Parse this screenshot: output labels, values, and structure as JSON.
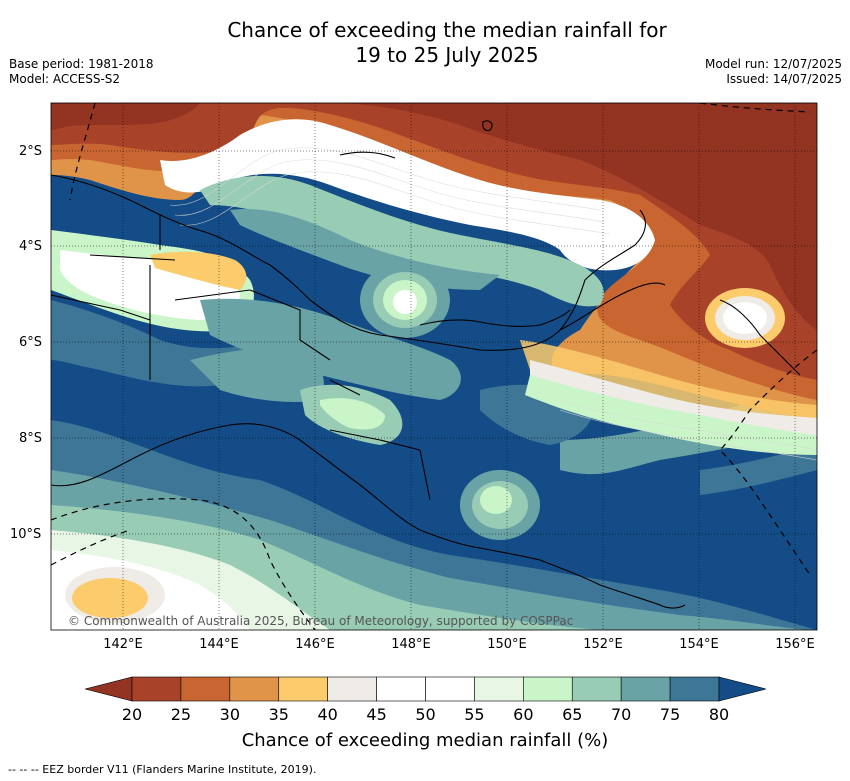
{
  "title_line1": "Chance of exceeding the median rainfall for",
  "title_line2": "19 to 25 July 2025",
  "meta_left": {
    "base_period": "Base period: 1981-2018",
    "model": "Model: ACCESS-S2"
  },
  "meta_right": {
    "model_run": "Model run: 12/07/2025",
    "issued": "Issued: 14/07/2025"
  },
  "map": {
    "lat_labels": [
      "2°S",
      "4°S",
      "6°S",
      "8°S",
      "10°S"
    ],
    "lon_labels": [
      "142°E",
      "144°E",
      "146°E",
      "148°E",
      "150°E",
      "152°E",
      "154°E",
      "156°E"
    ],
    "copyright": "© Commonwealth of Australia 2025, Bureau of Meteorology, supported by COSPPac"
  },
  "colorbar": {
    "title": "Chance of exceeding median rainfall (%)",
    "ticks": [
      "20",
      "25",
      "30",
      "35",
      "40",
      "45",
      "50",
      "55",
      "60",
      "65",
      "70",
      "75",
      "80"
    ],
    "colors": [
      "#a8432a",
      "#c96530",
      "#e0944a",
      "#fbcb6c",
      "#efebe6",
      "#ffffff",
      "#ffffff",
      "#e8f6e6",
      "#c9f5c8",
      "#98ccb4",
      "#6aa3a6",
      "#3e7698"
    ],
    "under_color": "#933322",
    "over_color": "#134c86"
  },
  "legend_note": "--  --  -- EEZ border V11 (Flanders Marine Institute, 2019)."
}
